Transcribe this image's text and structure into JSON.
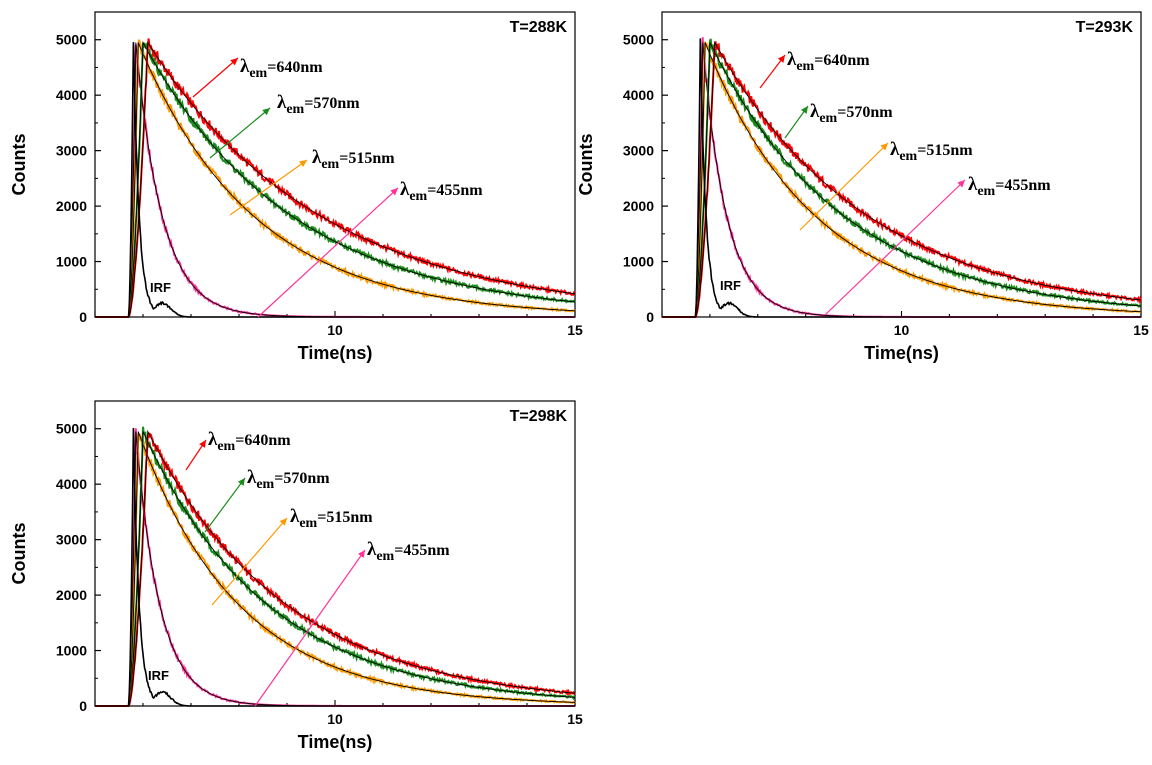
{
  "chart_data": [
    {
      "type": "line",
      "title": "T=288K",
      "xlabel": "Time(ns)",
      "ylabel": "Counts",
      "xlim": [
        5,
        15
      ],
      "ylim": [
        0,
        5500
      ],
      "xticks": [
        "10",
        "15"
      ],
      "yticks": [
        "0",
        "1000",
        "2000",
        "3000",
        "4000",
        "5000"
      ],
      "series": [
        {
          "name": "λem=640nm",
          "peak_time": 6.1,
          "peak_counts": 4950,
          "decay_ns": 3.6,
          "color": "#ff0000"
        },
        {
          "name": "λem=570nm",
          "peak_time": 6.0,
          "peak_counts": 4950,
          "decay_ns": 3.1,
          "color": "#1a8c1a"
        },
        {
          "name": "λem=515nm",
          "peak_time": 5.9,
          "peak_counts": 4950,
          "decay_ns": 2.4,
          "color": "#ff9900"
        },
        {
          "name": "λem=455nm",
          "peak_time": 5.85,
          "peak_counts": 4950,
          "decay_ns": 0.55,
          "color": "#ff3399"
        },
        {
          "name": "IRF",
          "peak_time": 5.8,
          "peak_counts": 5000,
          "decay_ns": 0.12,
          "color": "#000000"
        }
      ]
    },
    {
      "type": "line",
      "title": "T=293K",
      "xlabel": "Time(ns)",
      "ylabel": "Counts",
      "xlim": [
        5,
        15
      ],
      "ylim": [
        0,
        5500
      ],
      "xticks": [
        "10",
        "15"
      ],
      "yticks": [
        "0",
        "1000",
        "2000",
        "3000",
        "4000",
        "5000"
      ],
      "series": [
        {
          "name": "λem=640nm",
          "peak_time": 6.1,
          "peak_counts": 4950,
          "decay_ns": 3.2,
          "color": "#ff0000"
        },
        {
          "name": "λem=570nm",
          "peak_time": 6.0,
          "peak_counts": 4950,
          "decay_ns": 2.8,
          "color": "#1a8c1a"
        },
        {
          "name": "λem=515nm",
          "peak_time": 5.9,
          "peak_counts": 4950,
          "decay_ns": 2.3,
          "color": "#ff9900"
        },
        {
          "name": "λem=455nm",
          "peak_time": 5.85,
          "peak_counts": 4950,
          "decay_ns": 0.5,
          "color": "#ff3399"
        },
        {
          "name": "IRF",
          "peak_time": 5.8,
          "peak_counts": 5000,
          "decay_ns": 0.12,
          "color": "#000000"
        }
      ]
    },
    {
      "type": "line",
      "title": "T=298K",
      "xlabel": "Time(ns)",
      "ylabel": "Counts",
      "xlim": [
        5,
        15
      ],
      "ylim": [
        0,
        5500
      ],
      "xticks": [
        "10",
        "15"
      ],
      "yticks": [
        "0",
        "1000",
        "2000",
        "3000",
        "4000",
        "5000"
      ],
      "series": [
        {
          "name": "λem=640nm",
          "peak_time": 6.1,
          "peak_counts": 4950,
          "decay_ns": 2.9,
          "color": "#ff0000"
        },
        {
          "name": "λem=570nm",
          "peak_time": 6.0,
          "peak_counts": 4950,
          "decay_ns": 2.6,
          "color": "#1a8c1a"
        },
        {
          "name": "λem=515nm",
          "peak_time": 5.9,
          "peak_counts": 4950,
          "decay_ns": 2.1,
          "color": "#ff9900"
        },
        {
          "name": "λem=455nm",
          "peak_time": 5.85,
          "peak_counts": 4950,
          "decay_ns": 0.5,
          "color": "#ff3399"
        },
        {
          "name": "IRF",
          "peak_time": 5.8,
          "peak_counts": 5000,
          "decay_ns": 0.12,
          "color": "#000000"
        }
      ]
    }
  ],
  "fit_line_color": "#000000",
  "irf_label": "IRF"
}
